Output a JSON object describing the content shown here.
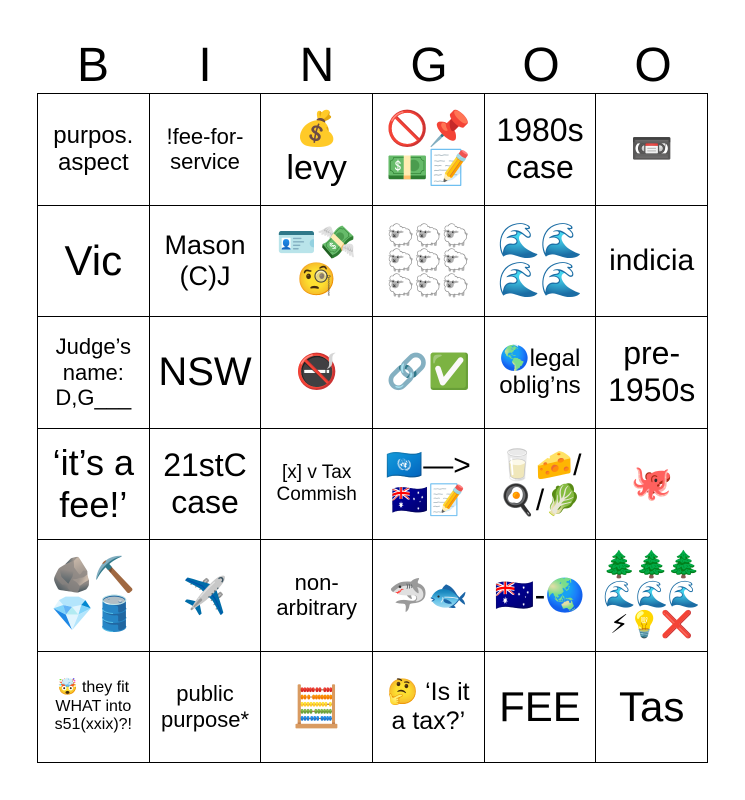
{
  "header": {
    "letters": [
      "B",
      "I",
      "N",
      "G",
      "O",
      "O"
    ]
  },
  "grid": {
    "rows": [
      [
        "purpos. aspect",
        "!fee-for-service",
        "💰 levy",
        "🚫📌💵📝",
        "1980s case",
        "📼"
      ],
      [
        "Vic",
        "Mason (C)J",
        "🪪💸🧐",
        "🐑🐑🐑🐑🐑🐑🐑🐑🐑",
        "🌊🌊🌊🌊",
        "indicia"
      ],
      [
        "Judge’s name: D,G___",
        "NSW",
        "🚭",
        "🔗✅",
        "🌎legal oblig’ns",
        "pre-1950s"
      ],
      [
        "‘it’s a fee!’",
        "21stC case",
        "[x] v Tax Commish",
        "🇺🇳—>🇦🇺📝",
        "🥛🧀/🍳/🥬",
        "🐙"
      ],
      [
        "🪨⛏️💎🛢️",
        "✈️",
        "non-arbitrary",
        "🦈🐟",
        "🇦🇺-🌏",
        "🌲🌲🌲🌊🌊🌊⚡💡❌"
      ],
      [
        "🤯 they fit WHAT into s51(xxix)?!",
        "public purpose*",
        "🧮",
        "🤔 ‘Is it a tax?’",
        "FEE",
        "Tas"
      ]
    ]
  }
}
